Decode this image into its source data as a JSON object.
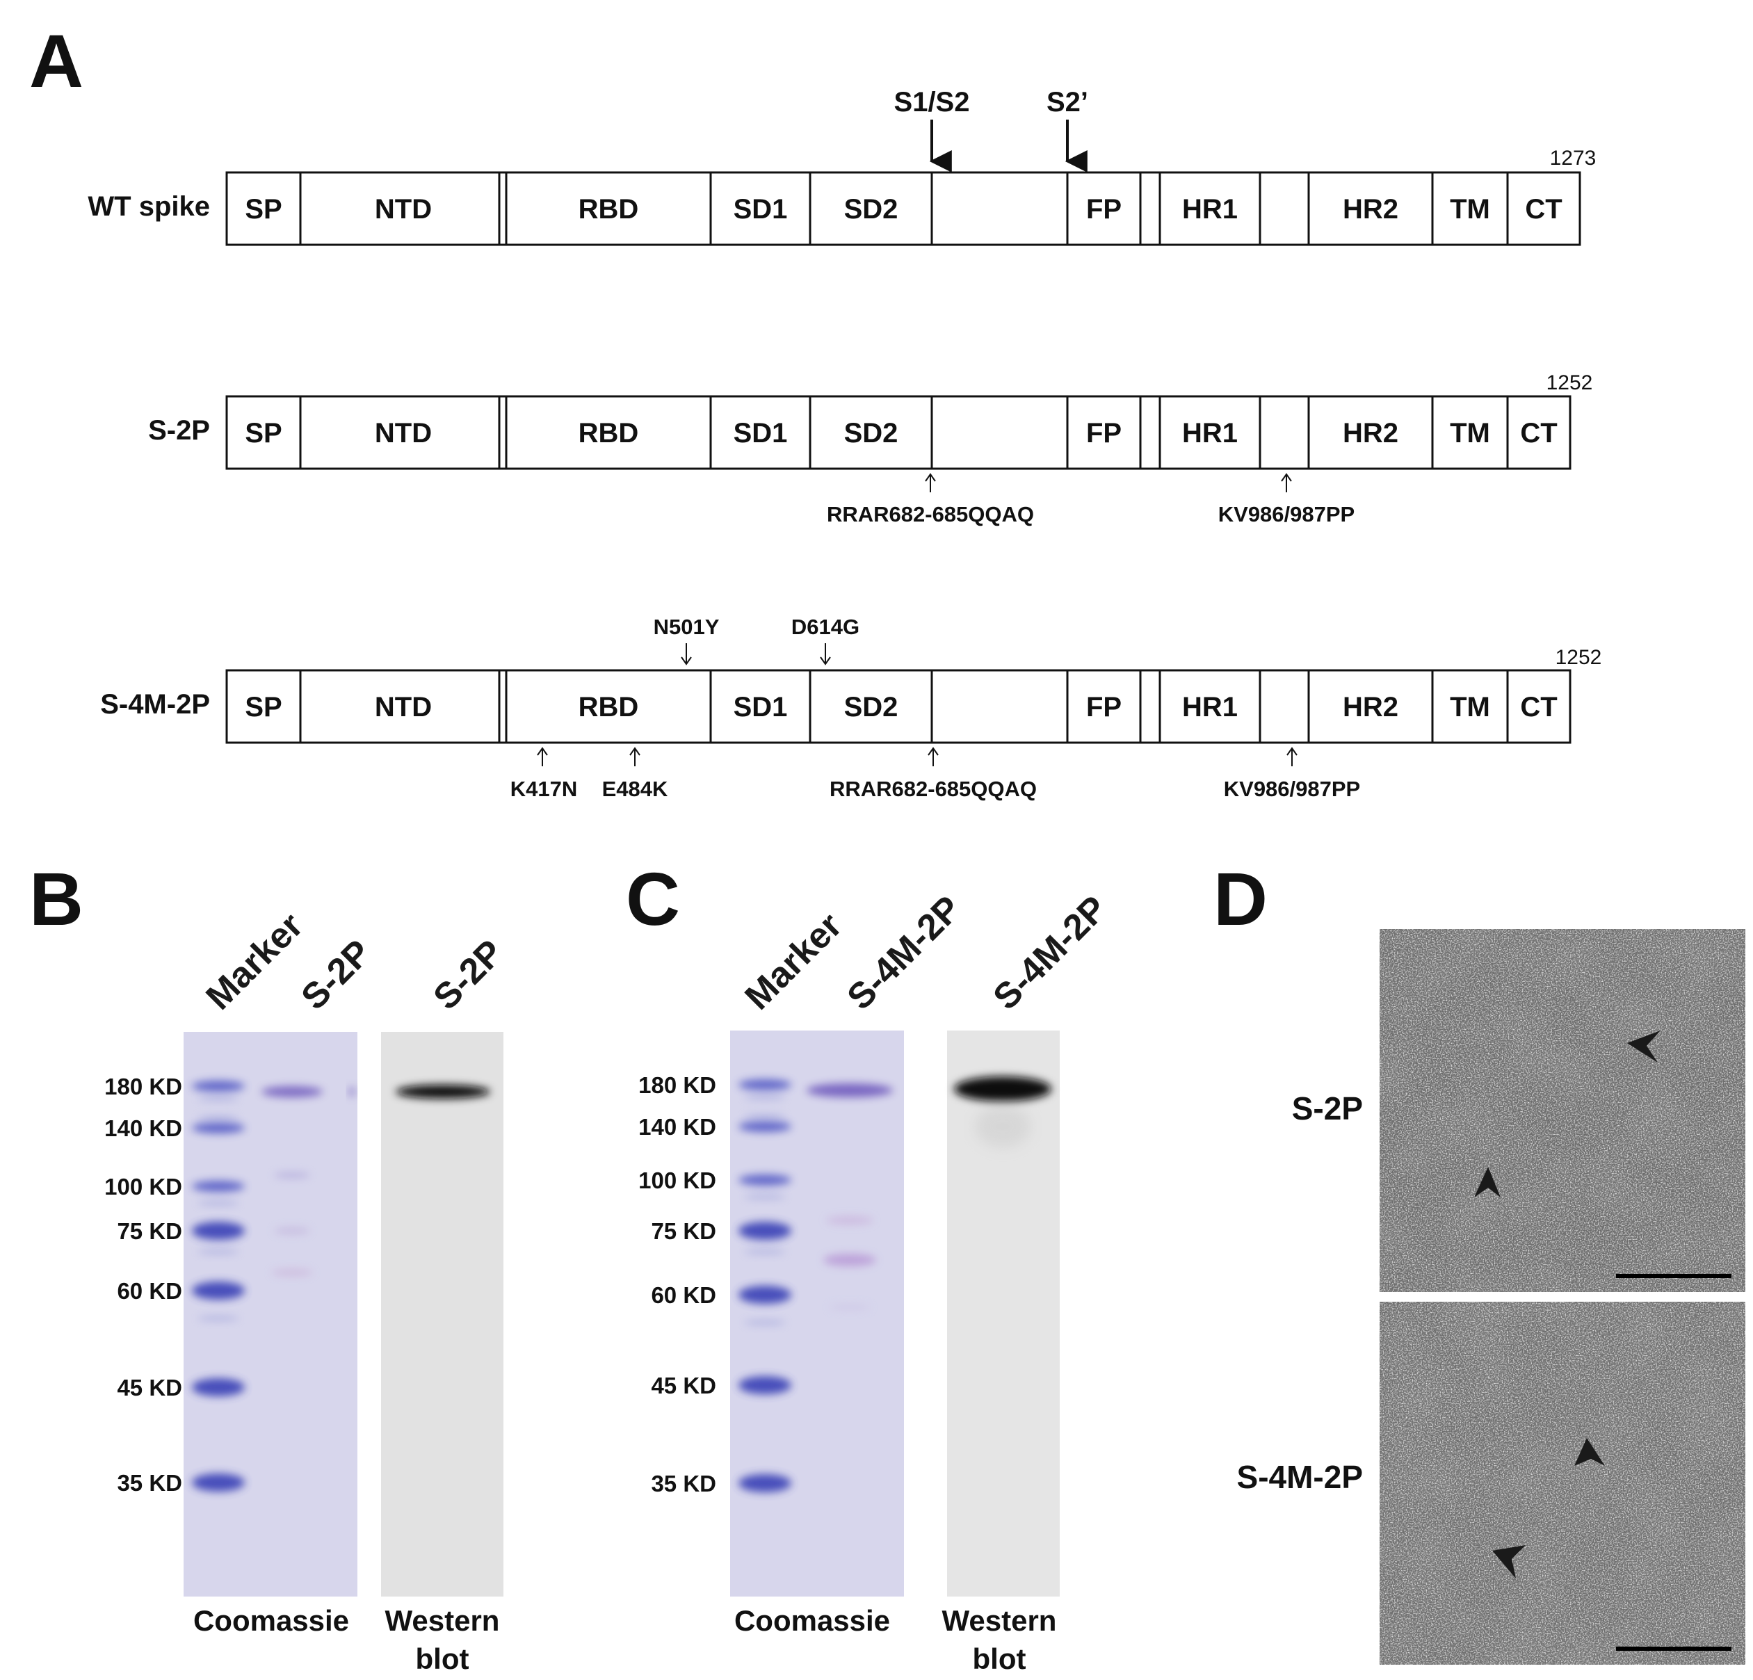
{
  "panels": [
    "A",
    "B",
    "C",
    "D"
  ],
  "panel_a": {
    "cleavage_sites": [
      "S1/S2",
      "S2’"
    ],
    "constructs": [
      {
        "name": "WT spike",
        "length": "1273",
        "domains": [
          "SP",
          "NTD",
          "RBD",
          "SD1",
          "SD2",
          "",
          "FP",
          "",
          "HR1",
          "",
          "HR2",
          "TM",
          "CT"
        ]
      },
      {
        "name": "S-2P",
        "length": "1252",
        "domains": [
          "SP",
          "NTD",
          "RBD",
          "SD1",
          "SD2",
          "",
          "FP",
          "",
          "HR1",
          "",
          "HR2",
          "TM",
          "CT"
        ],
        "mutations_below": [
          "RRAR682-685QQAQ",
          "KV986/987PP"
        ]
      },
      {
        "name": "S-4M-2P",
        "length": "1252",
        "domains": [
          "SP",
          "NTD",
          "RBD",
          "SD1",
          "SD2",
          "",
          "FP",
          "",
          "HR1",
          "",
          "HR2",
          "TM",
          "CT"
        ],
        "mutations_above": [
          "N501Y",
          "D614G"
        ],
        "mutations_below": [
          "K417N",
          "E484K",
          "RRAR682-685QQAQ",
          "KV986/987PP"
        ]
      }
    ]
  },
  "panel_b": {
    "lanes": [
      "Marker",
      "S-2P",
      "S-2P"
    ],
    "markers": [
      "180 KD",
      "140 KD",
      "100 KD",
      "75 KD",
      "60 KD",
      "45 KD",
      "35 KD"
    ],
    "captions": [
      "Coomassie",
      "Western",
      "blot"
    ]
  },
  "panel_c": {
    "lanes": [
      "Marker",
      "S-4M-2P",
      "S-4M-2P"
    ],
    "markers": [
      "180 KD",
      "140 KD",
      "100 KD",
      "75 KD",
      "60 KD",
      "45 KD",
      "35 KD"
    ],
    "captions": [
      "Coomassie",
      "Western",
      "blot"
    ]
  },
  "panel_d": {
    "rows": [
      "S-2P",
      "S-4M-2P"
    ]
  },
  "colors": {
    "gel_bg": "#dcdbee",
    "marker_band": "#5b62c8",
    "protein_band": "#7d66c2",
    "blot_bg": "#e4e4e4",
    "em_bg": "#6f6f6f"
  }
}
